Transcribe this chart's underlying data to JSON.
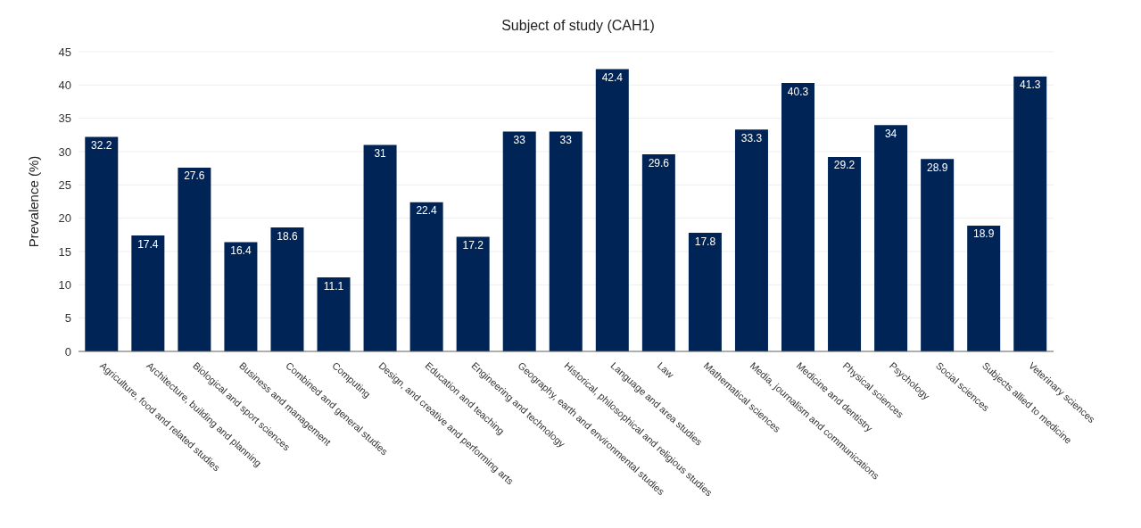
{
  "chart_data": {
    "type": "bar",
    "title": "Subject of study (CAH1)",
    "ylabel": "Prevalence (%)",
    "categories": [
      "Agriculture, food and related studies",
      "Architecture, building and planning",
      "Biological and sport sciences",
      "Business and management",
      "Combined and general studies",
      "Computing",
      "Design, and creative and performing arts",
      "Education and teaching",
      "Engineering and technology",
      "Geography, earth and environmental studies",
      "Historical, philosophical and religious studies",
      "Language and area studies",
      "Law",
      "Mathematical sciences",
      "Media, journalism and communications",
      "Medicine and dentistry",
      "Physical sciences",
      "Psychology",
      "Social sciences",
      "Subjects allied to medicine",
      "Veterinary sciences"
    ],
    "values": [
      32.2,
      17.4,
      27.6,
      16.4,
      18.6,
      11.1,
      31,
      22.4,
      17.2,
      33,
      33,
      42.4,
      29.6,
      17.8,
      33.3,
      40.3,
      29.2,
      34,
      28.9,
      18.9,
      41.3
    ],
    "color": "#002455",
    "ylim": [
      0,
      45
    ],
    "yticks": [
      0,
      5,
      10,
      15,
      20,
      25,
      30,
      35,
      40,
      45
    ],
    "grid": "y",
    "data_labels": true
  }
}
